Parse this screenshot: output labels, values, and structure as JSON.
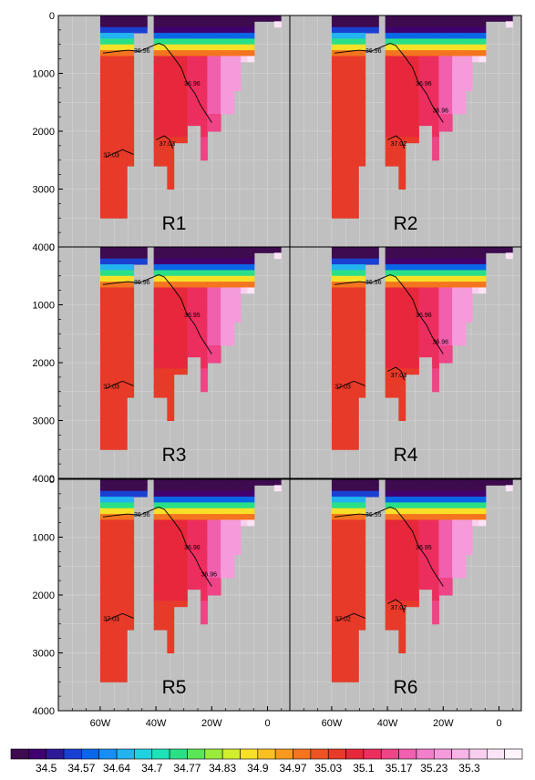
{
  "chart_data": {
    "type": "heatmap",
    "title": "",
    "xlabel": "",
    "ylabel": "",
    "xlim": [
      -75,
      8
    ],
    "ylim": [
      4000,
      0
    ],
    "x_ticks": [
      -60,
      -40,
      -20,
      0
    ],
    "x_tick_labels": [
      "60W",
      "40W",
      "20W",
      "0"
    ],
    "y_ticks": [
      0,
      1000,
      2000,
      3000,
      4000
    ],
    "y_tick_labels": [
      "0",
      "1000",
      "2000",
      "3000",
      "4000"
    ],
    "grid": true,
    "land_color": "#c0c0c0",
    "contour_color": "#000000",
    "colorbar": {
      "placement": "bottom",
      "labels": [
        "34.5",
        "34.57",
        "34.64",
        "34.7",
        "34.77",
        "34.83",
        "34.9",
        "34.97",
        "35.03",
        "35.1",
        "35.17",
        "35.23",
        "35.3"
      ],
      "colors": [
        "#3d0b4e",
        "#40006f",
        "#2c1a97",
        "#1a40d2",
        "#0a66e8",
        "#1a8ef5",
        "#22b3f0",
        "#20d2e0",
        "#1de3b8",
        "#2ae086",
        "#5ae656",
        "#9aec3c",
        "#d2ee2e",
        "#f8e028",
        "#fac022",
        "#f89a20",
        "#f4741f",
        "#ee5423",
        "#e73a29",
        "#e7283b",
        "#ec2e5e",
        "#ef4486",
        "#f160ae",
        "#f37ecb",
        "#f59bdb",
        "#f7b6e6",
        "#f9cfef",
        "#fbe4f6",
        "#fdf4fb"
      ]
    },
    "panels": [
      {
        "name": "R1",
        "ridge_label": "36.96",
        "slope_label": "36.96",
        "deep_west": "37.03",
        "deep_center": "37.03",
        "slope_len": 1
      },
      {
        "name": "R2",
        "ridge_label": "36.96",
        "slope_label": "36.96",
        "slope_label2": "36.96",
        "deep_west": "",
        "deep_center": "37.02",
        "slope_len": 1
      },
      {
        "name": "R3",
        "ridge_label": "36.96",
        "slope_label": "36.95",
        "deep_west": "37.03",
        "deep_center": "",
        "slope_len": 1
      },
      {
        "name": "R4",
        "ridge_label": "36.96",
        "slope_label": "36.96",
        "slope_label2": "36.96",
        "deep_west": "37.03",
        "deep_center": "37.03",
        "slope_len": 1
      },
      {
        "name": "R5",
        "ridge_label": "36.96",
        "slope_label": "36.96",
        "slope_label2": "36.96",
        "deep_west": "37.03",
        "deep_center": "",
        "slope_len": 1
      },
      {
        "name": "R6",
        "ridge_label": "36.95",
        "slope_label": "36.95",
        "deep_west": "37.02",
        "deep_center": "37.02",
        "slope_len": 1
      }
    ]
  }
}
